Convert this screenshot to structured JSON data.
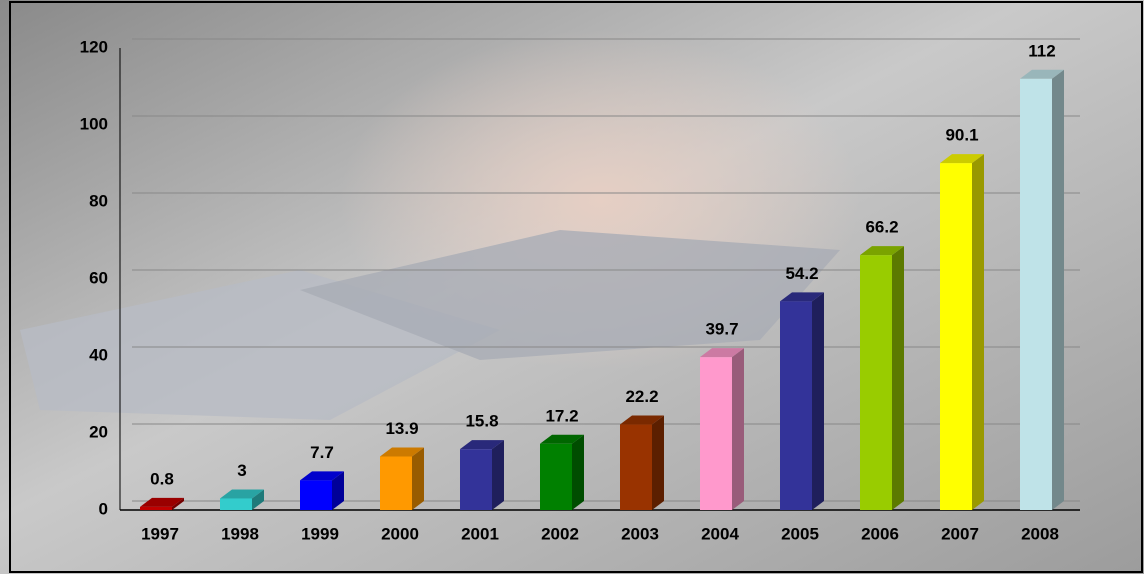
{
  "chart_data": {
    "type": "bar3d",
    "categories": [
      "1997",
      "1998",
      "1999",
      "2000",
      "2001",
      "2002",
      "2003",
      "2004",
      "2005",
      "2006",
      "2007",
      "2008"
    ],
    "values": [
      0.8,
      3,
      7.7,
      13.9,
      15.8,
      17.2,
      22.2,
      39.7,
      54.2,
      66.2,
      90.1,
      112
    ],
    "colors": [
      "#c00000",
      "#33cccc",
      "#0000ff",
      "#ff9900",
      "#333399",
      "#008000",
      "#993300",
      "#ff99cc",
      "#333399",
      "#99cc00",
      "#ffff00",
      "#bfe3e8"
    ],
    "ylim": [
      0,
      120
    ],
    "yticks": [
      0,
      20,
      40,
      60,
      80,
      100,
      120
    ],
    "grid": true
  }
}
